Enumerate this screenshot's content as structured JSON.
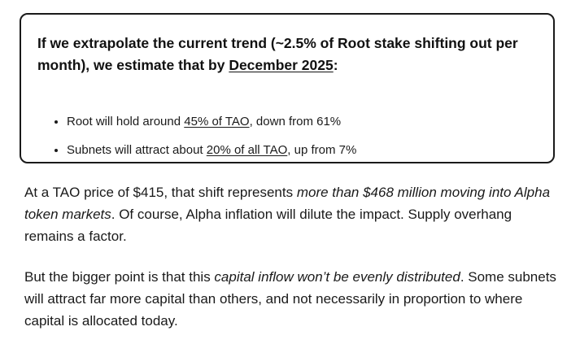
{
  "callout": {
    "heading_pre": "If we extrapolate the current trend (~2.5% of Root stake shifting out per month), we estimate that by ",
    "heading_link": "December 2025",
    "heading_post": ":",
    "bullets": [
      {
        "pre": "Root will hold around ",
        "link": "45% of TAO",
        "post": ", down from 61%"
      },
      {
        "pre": "Subnets will attract about ",
        "link": "20% of all TAO",
        "post": ", up from 7%"
      }
    ]
  },
  "paragraphs": [
    {
      "pre": "At a TAO price of $415, that shift represents ",
      "em": "more than $468 million moving into Alpha token markets",
      "post": ". Of course, Alpha inflation will dilute the impact. Supply overhang remains a factor."
    },
    {
      "pre": "But the bigger point is that this ",
      "em": "capital inflow won’t be evenly distributed",
      "post": ". Some subnets will attract far more capital than others, and not necessarily in proportion to where capital is allocated today."
    }
  ]
}
